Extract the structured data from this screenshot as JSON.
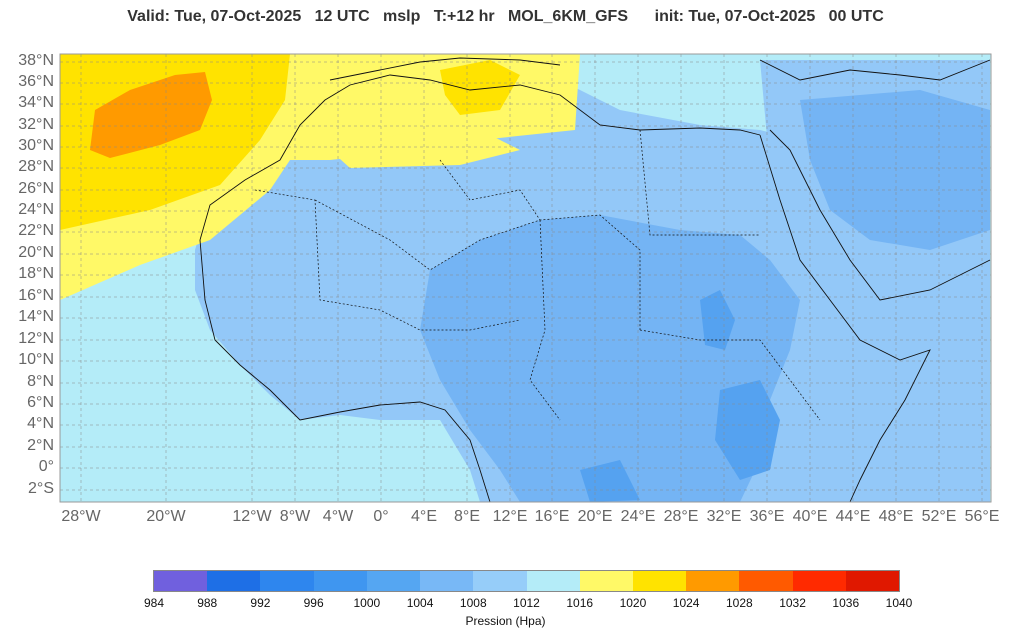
{
  "header": {
    "title": "Valid: Tue, 07-Oct-2025   12 UTC   mslp   T:+12 hr   MOL_6KM_GFS      init: Tue, 07-Oct-2025   00 UTC"
  },
  "map": {
    "y_labels": [
      "38°N",
      "36°N",
      "34°N",
      "32°N",
      "30°N",
      "28°N",
      "26°N",
      "24°N",
      "22°N",
      "20°N",
      "18°N",
      "16°N",
      "14°N",
      "12°N",
      "10°N",
      "8°N",
      "6°N",
      "4°N",
      "2°N",
      "0°",
      "2°S"
    ],
    "x_labels": [
      "28°W",
      "20°W",
      "12°W",
      "8°W",
      "4°W",
      "0°",
      "4°E",
      "8°E",
      "12°E",
      "16°E",
      "20°E",
      "24°E",
      "28°E",
      "32°E",
      "36°E",
      "40°E",
      "44°E",
      "48°E",
      "52°E",
      "56°E"
    ],
    "colors": {
      "ocean": "#b4ecf8",
      "land_1012": "#93c8f8",
      "land_1008": "#74b4f4",
      "land_1004": "#55a2f0",
      "high_1020": "#fff967",
      "high_1024": "#ffe300",
      "high_1028": "#ff9a00"
    }
  },
  "legend": {
    "colors": [
      "#7060de",
      "#1e6fe6",
      "#2e86ee",
      "#3f96f0",
      "#55a6f2",
      "#78b8f6",
      "#96cdf9",
      "#b4ecf8",
      "#fff967",
      "#ffe300",
      "#ff9a00",
      "#ff5a00",
      "#ff2a00",
      "#e01800"
    ],
    "ticks": [
      "984",
      "988",
      "992",
      "996",
      "1000",
      "1004",
      "1008",
      "1012",
      "1016",
      "1020",
      "1024",
      "1028",
      "1032",
      "1036",
      "1040"
    ],
    "unit": "Pression (Hpa)"
  }
}
